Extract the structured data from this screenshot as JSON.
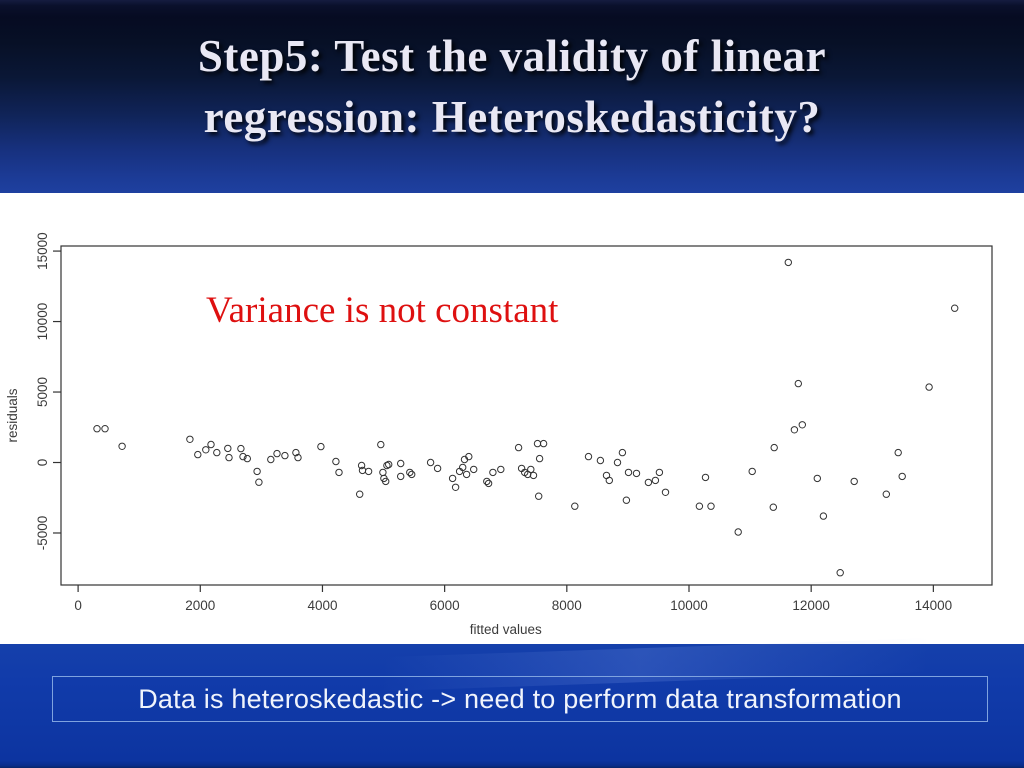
{
  "slide": {
    "title_line1": "Step5: Test the validity of linear",
    "title_line2": "regression: Heteroskedasticity?",
    "conclusion": "Data is heteroskedastic -> need to perform data transformation"
  },
  "colors": {
    "header_top": "#060b22",
    "header_bottom": "#1e40a0",
    "banner_blue": "#0e37a4",
    "box_border": "#7fa3df",
    "annotation_red": "#de1010",
    "axis_color": "#3c3c3c",
    "point_stroke": "#333333",
    "plot_background": "#ffffff"
  },
  "chart_data": {
    "type": "scatter",
    "title": "",
    "xlabel": "fitted values",
    "ylabel": "residuals",
    "annotation": "Variance is not constant",
    "x_ticks": [
      0,
      2000,
      4000,
      6000,
      8000,
      10000,
      12000,
      14000
    ],
    "y_ticks": [
      -5000,
      0,
      5000,
      10000,
      15000
    ],
    "xlim": [
      -280,
      14960
    ],
    "ylim": [
      -8690,
      15360
    ],
    "grid": false,
    "legend": null,
    "marker": "open-circle",
    "points": [
      [
        310,
        2400
      ],
      [
        440,
        2400
      ],
      [
        720,
        1150
      ],
      [
        1830,
        1650
      ],
      [
        1960,
        560
      ],
      [
        2090,
        900
      ],
      [
        2175,
        1280
      ],
      [
        2270,
        700
      ],
      [
        2450,
        1000
      ],
      [
        2470,
        350
      ],
      [
        2665,
        985
      ],
      [
        2700,
        420
      ],
      [
        2770,
        280
      ],
      [
        2930,
        -630
      ],
      [
        2960,
        -1400
      ],
      [
        3155,
        210
      ],
      [
        3255,
        630
      ],
      [
        3385,
        490
      ],
      [
        3565,
        700
      ],
      [
        3600,
        350
      ],
      [
        3975,
        1130
      ],
      [
        4220,
        70
      ],
      [
        4270,
        -700
      ],
      [
        4610,
        -2250
      ],
      [
        4640,
        -210
      ],
      [
        4655,
        -560
      ],
      [
        4755,
        -630
      ],
      [
        4955,
        1270
      ],
      [
        4990,
        -700
      ],
      [
        5005,
        -1125
      ],
      [
        5035,
        -1340
      ],
      [
        5055,
        -210
      ],
      [
        5085,
        -140
      ],
      [
        5280,
        -70
      ],
      [
        5280,
        -985
      ],
      [
        5430,
        -700
      ],
      [
        5460,
        -845
      ],
      [
        5770,
        0
      ],
      [
        5885,
        -420
      ],
      [
        6130,
        -1125
      ],
      [
        6180,
        -1760
      ],
      [
        6245,
        -630
      ],
      [
        6295,
        -350
      ],
      [
        6325,
        210
      ],
      [
        6360,
        -845
      ],
      [
        6395,
        420
      ],
      [
        6475,
        -490
      ],
      [
        6690,
        -1340
      ],
      [
        6720,
        -1480
      ],
      [
        6790,
        -700
      ],
      [
        6920,
        -490
      ],
      [
        7210,
        1055
      ],
      [
        7260,
        -420
      ],
      [
        7310,
        -700
      ],
      [
        7360,
        -845
      ],
      [
        7410,
        -490
      ],
      [
        7455,
        -915
      ],
      [
        7520,
        1340
      ],
      [
        7555,
        280
      ],
      [
        7620,
        1340
      ],
      [
        7540,
        -2390
      ],
      [
        8130,
        -3100
      ],
      [
        8355,
        420
      ],
      [
        8550,
        140
      ],
      [
        8650,
        -915
      ],
      [
        8695,
        -1270
      ],
      [
        8830,
        0
      ],
      [
        8910,
        700
      ],
      [
        8975,
        -2675
      ],
      [
        9010,
        -700
      ],
      [
        9140,
        -775
      ],
      [
        9335,
        -1410
      ],
      [
        9450,
        -1270
      ],
      [
        9515,
        -700
      ],
      [
        9615,
        -2110
      ],
      [
        10170,
        -3100
      ],
      [
        10270,
        -1055
      ],
      [
        10360,
        -3100
      ],
      [
        10805,
        -4930
      ],
      [
        11035,
        -630
      ],
      [
        11380,
        -3170
      ],
      [
        11395,
        1055
      ],
      [
        11625,
        14200
      ],
      [
        11725,
        2320
      ],
      [
        11790,
        5600
      ],
      [
        11855,
        2675
      ],
      [
        12100,
        -1125
      ],
      [
        12200,
        -3800
      ],
      [
        12475,
        -7815
      ],
      [
        12705,
        -1340
      ],
      [
        13230,
        -2250
      ],
      [
        13425,
        700
      ],
      [
        13490,
        -985
      ],
      [
        13930,
        5350
      ],
      [
        14350,
        10950
      ]
    ]
  }
}
